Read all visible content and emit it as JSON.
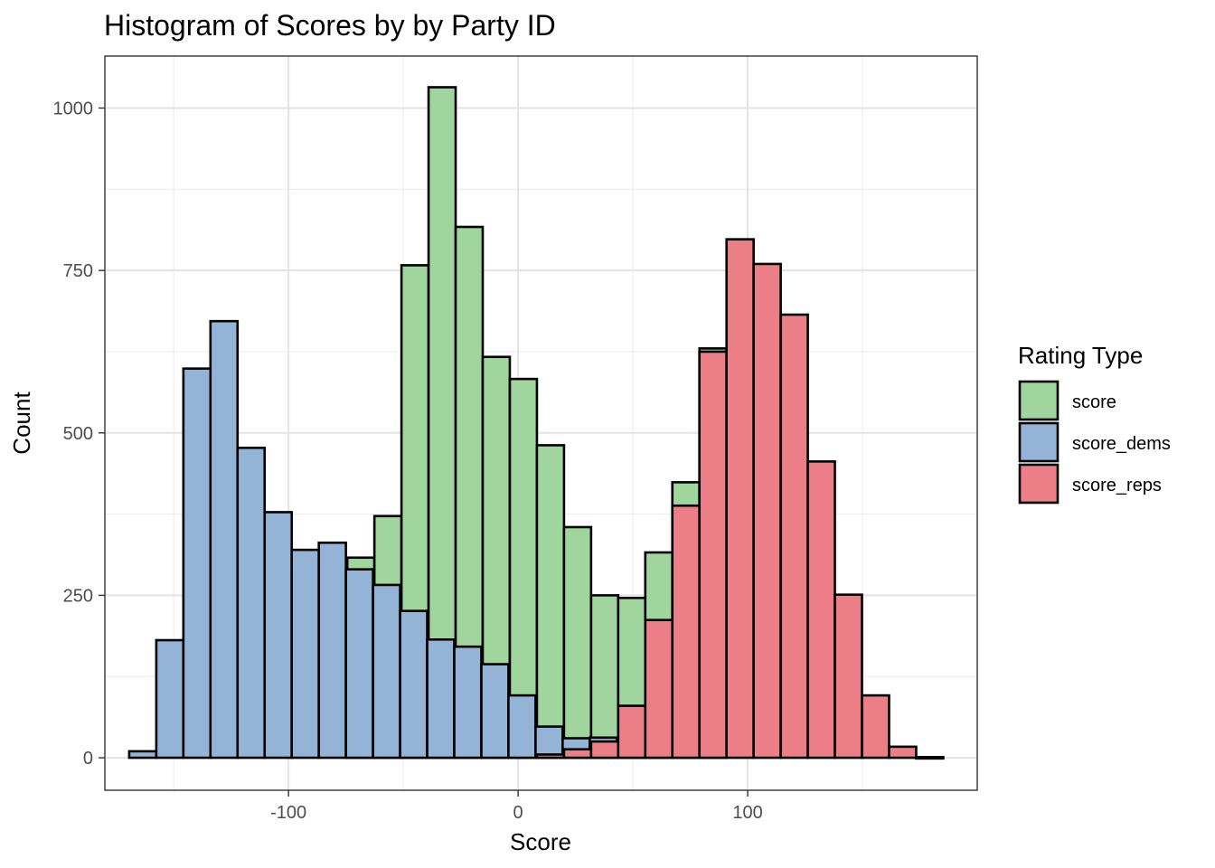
{
  "chart_data": {
    "type": "bar",
    "subtype": "histogram-overlay",
    "title": "Histogram of Scores by by Party ID",
    "xlabel": "Score",
    "ylabel": "Count",
    "xlim": [
      -180,
      200
    ],
    "ylim": [
      -50,
      1080
    ],
    "bin_width": 11.8,
    "x_ticks": [
      -100,
      0,
      100
    ],
    "x_tick_labels": [
      "-100",
      "0",
      "100"
    ],
    "y_ticks": [
      0,
      250,
      500,
      750,
      1000
    ],
    "y_tick_labels": [
      "0",
      "250",
      "500",
      "750",
      "1000"
    ],
    "grid": true,
    "legend_position": "right",
    "legend_title": "Rating Type",
    "series": [
      {
        "name": "score",
        "color": "#a0d59d",
        "bins": [
          {
            "x": -68.5,
            "value": 308
          },
          {
            "x": -56.7,
            "value": 372
          },
          {
            "x": -44.9,
            "value": 758
          },
          {
            "x": -33.1,
            "value": 1032
          },
          {
            "x": -21.3,
            "value": 817
          },
          {
            "x": -9.5,
            "value": 617
          },
          {
            "x": 2.3,
            "value": 583
          },
          {
            "x": 14.1,
            "value": 481
          },
          {
            "x": 25.9,
            "value": 355
          },
          {
            "x": 37.7,
            "value": 250
          },
          {
            "x": 49.5,
            "value": 246
          },
          {
            "x": 61.3,
            "value": 316
          },
          {
            "x": 73.1,
            "value": 424
          },
          {
            "x": 84.9,
            "value": 630
          }
        ]
      },
      {
        "name": "score_dems",
        "color": "#93b4d6",
        "bins": [
          {
            "x": -163.5,
            "value": 10
          },
          {
            "x": -151.7,
            "value": 181
          },
          {
            "x": -139.9,
            "value": 599
          },
          {
            "x": -128.1,
            "value": 672
          },
          {
            "x": -116.3,
            "value": 477
          },
          {
            "x": -104.5,
            "value": 378
          },
          {
            "x": -92.7,
            "value": 320
          },
          {
            "x": -80.9,
            "value": 331
          },
          {
            "x": -69.1,
            "value": 290
          },
          {
            "x": -57.3,
            "value": 266
          },
          {
            "x": -45.5,
            "value": 226
          },
          {
            "x": -33.7,
            "value": 182
          },
          {
            "x": -21.9,
            "value": 171
          },
          {
            "x": -10.1,
            "value": 144
          },
          {
            "x": 1.7,
            "value": 96
          },
          {
            "x": 13.5,
            "value": 48
          },
          {
            "x": 25.3,
            "value": 30
          },
          {
            "x": 37.1,
            "value": 31
          }
        ]
      },
      {
        "name": "score_reps",
        "color": "#ec7e87",
        "bins": [
          {
            "x": 14.1,
            "value": 5
          },
          {
            "x": 25.9,
            "value": 13
          },
          {
            "x": 37.7,
            "value": 25
          },
          {
            "x": 49.5,
            "value": 80
          },
          {
            "x": 61.3,
            "value": 212
          },
          {
            "x": 73.1,
            "value": 388
          },
          {
            "x": 84.9,
            "value": 625
          },
          {
            "x": 96.7,
            "value": 798
          },
          {
            "x": 108.5,
            "value": 760
          },
          {
            "x": 120.3,
            "value": 682
          },
          {
            "x": 132.1,
            "value": 456
          },
          {
            "x": 143.9,
            "value": 251
          },
          {
            "x": 155.7,
            "value": 96
          },
          {
            "x": 167.5,
            "value": 17
          },
          {
            "x": 179.3,
            "value": 1
          }
        ]
      }
    ]
  }
}
